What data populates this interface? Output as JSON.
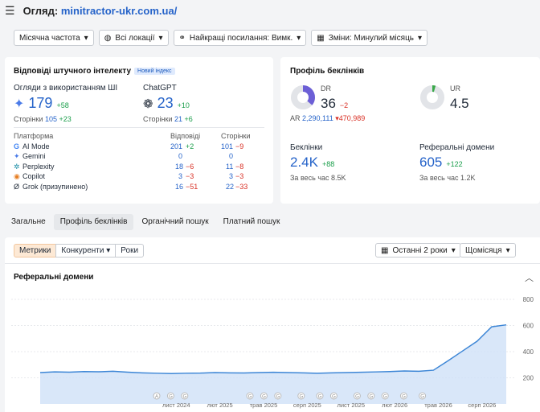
{
  "header": {
    "prefix": "Огляд:",
    "domain": "minitractor-ukr.com.ua/"
  },
  "filters": {
    "freq": "Місячна частота",
    "loc": "Всі локації",
    "links": "Найкращі посилання: Вимк.",
    "changes": "Зміни: Минулий місяць"
  },
  "ai": {
    "title": "Відповіді штучного інтелекту",
    "badge": "Новий індекс",
    "overview_label": "Огляди з використанням ШІ",
    "overview_value": "179",
    "overview_delta": "+58",
    "overview_pages_label": "Сторінки",
    "overview_pages": "105",
    "overview_pages_delta": "+23",
    "chatgpt_label": "ChatGPT",
    "chatgpt_value": "23",
    "chatgpt_delta": "+10",
    "chatgpt_pages_label": "Сторінки",
    "chatgpt_pages": "21",
    "chatgpt_pages_delta": "+6",
    "cols": [
      "Платформа",
      "Відповіді",
      "Сторінки"
    ],
    "platforms": [
      {
        "name": "AI Mode",
        "resp": "201",
        "rd": "+2",
        "pages": "101",
        "pd": "−9"
      },
      {
        "name": "Gemini",
        "resp": "0",
        "rd": "",
        "pages": "0",
        "pd": ""
      },
      {
        "name": "Perplexity",
        "resp": "18",
        "rd": "−6",
        "pages": "11",
        "pd": "−8"
      },
      {
        "name": "Copilot",
        "resp": "3",
        "rd": "−3",
        "pages": "3",
        "pd": "−3"
      },
      {
        "name": "Grok (призупинено)",
        "resp": "16",
        "rd": "−51",
        "pages": "22",
        "pd": "−33"
      }
    ]
  },
  "backlinks": {
    "title": "Профіль беклінків",
    "dr_label": "DR",
    "dr_value": "36",
    "dr_delta": "−2",
    "ar_label": "AR",
    "ar_value": "2,290,111",
    "ar_delta": "470,989",
    "ur_label": "UR",
    "ur_value": "4.5",
    "bl_label": "Беклінки",
    "bl_value": "2.4K",
    "bl_delta": "+88",
    "bl_all_label": "За весь час",
    "bl_all": "8.5K",
    "rd_label": "Реферальні домени",
    "rd_value": "605",
    "rd_delta": "+122",
    "rd_all_label": "За весь час",
    "rd_all": "1.2K"
  },
  "tabs": [
    "Загальне",
    "Профіль беклінків",
    "Органічний пошук",
    "Платний пошук"
  ],
  "controls": {
    "seg": [
      "Метрики",
      "Конкуренти",
      "Роки"
    ],
    "range": "Останні 2 роки",
    "period": "Щомісяця"
  },
  "chart_title": "Реферальні домени",
  "chart_data": {
    "type": "area",
    "title": "Реферальні домени",
    "x": [
      "2024-01",
      "2024-02",
      "2024-03",
      "2024-04",
      "2024-05",
      "2024-06",
      "2024-07",
      "2024-08",
      "2024-09",
      "2024-10",
      "2024-11",
      "2024-12",
      "2025-01",
      "2025-02",
      "2025-03",
      "2025-04",
      "2025-05",
      "2025-06",
      "2025-07",
      "2025-08",
      "2025-09",
      "2025-10",
      "2025-11",
      "2025-12",
      "2026-01",
      "2026-02",
      "2026-03",
      "2026-04",
      "2026-05",
      "2026-06",
      "2026-07",
      "2026-08",
      "2026-09"
    ],
    "values": [
      240,
      245,
      243,
      248,
      246,
      250,
      243,
      238,
      235,
      232,
      235,
      236,
      240,
      238,
      237,
      240,
      242,
      240,
      238,
      235,
      238,
      240,
      242,
      245,
      248,
      252,
      250,
      258,
      330,
      405,
      480,
      590,
      605
    ],
    "ylim": [
      0,
      800
    ],
    "yticks": [
      200,
      400,
      600,
      800
    ],
    "xtick_labels": [
      {
        "label": "лист 2024",
        "x": "2024-11"
      },
      {
        "label": "лют 2025",
        "x": "2025-02"
      },
      {
        "label": "трав 2025",
        "x": "2025-05"
      },
      {
        "label": "серп 2025",
        "x": "2025-08"
      },
      {
        "label": "лист 2025",
        "x": "2025-11"
      },
      {
        "label": "лют 2026",
        "x": "2026-02"
      },
      {
        "label": "трав 2026",
        "x": "2026-05"
      },
      {
        "label": "серп 2026",
        "x": "2026-08"
      }
    ],
    "markers": [
      "A",
      "G",
      "G",
      "G",
      "G",
      "G",
      "G",
      "G",
      "G",
      "G",
      "G",
      "G",
      "G",
      "G"
    ],
    "grid": true
  }
}
